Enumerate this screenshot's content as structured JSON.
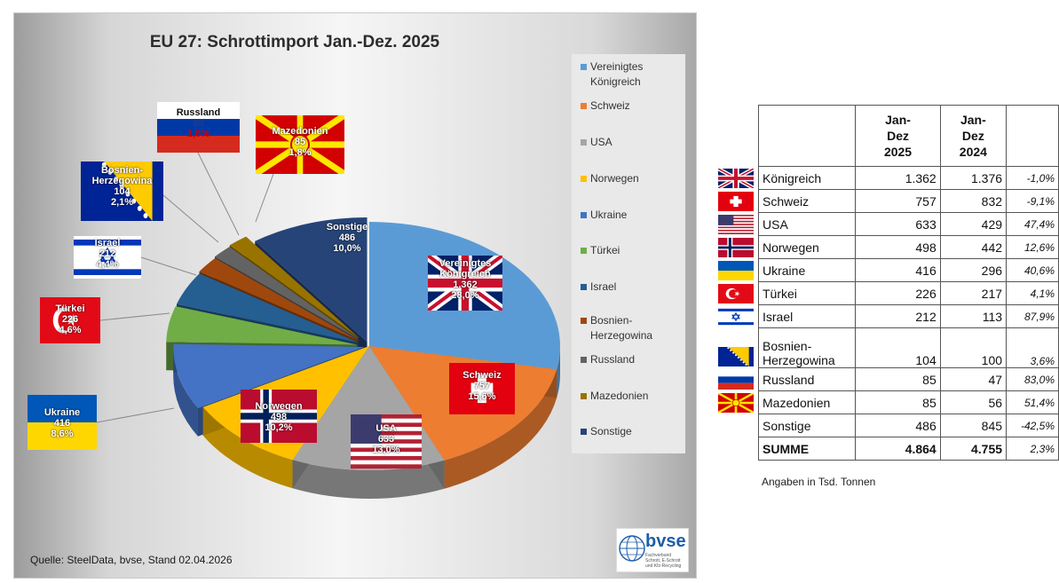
{
  "chart_data": {
    "type": "pie",
    "title": "EU 27: Schrottimport Jan.-Dez. 2025",
    "source": "Quelle: SteelData, bvse, Stand 02.04.2026",
    "slices": [
      {
        "name": "Vereinigtes Königreich",
        "value": 1362,
        "percent": "28,0%",
        "color": "#5b9bd5"
      },
      {
        "name": "Schweiz",
        "value": 757,
        "percent": "15,6%",
        "color": "#ed7d31"
      },
      {
        "name": "USA",
        "value": 633,
        "percent": "13,0%",
        "color": "#a5a5a5"
      },
      {
        "name": "Norwegen",
        "value": 498,
        "percent": "10,2%",
        "color": "#ffc000"
      },
      {
        "name": "Ukraine",
        "value": 416,
        "percent": "8,6%",
        "color": "#4472c4"
      },
      {
        "name": "Türkei",
        "value": 226,
        "percent": "4,6%",
        "color": "#70ad47"
      },
      {
        "name": "Israel",
        "value": 212,
        "percent": "4,4%",
        "color": "#255e91"
      },
      {
        "name": "Bosnien-Herzegowina",
        "value": 104,
        "percent": "2,1%",
        "color": "#9e480e"
      },
      {
        "name": "Russland",
        "value": 85,
        "percent": "1,8%",
        "color": "#636363"
      },
      {
        "name": "Mazedonien",
        "value": 85,
        "percent": "1,8%",
        "color": "#997300"
      },
      {
        "name": "Sonstige",
        "value": 486,
        "percent": "10,0%",
        "color": "#264478"
      }
    ],
    "legend_position": "right",
    "labels": {
      "uk": [
        "Vereinigtes",
        "Königreich",
        "1.362",
        "28,0%"
      ],
      "ch": [
        "Schweiz",
        "757",
        "15,6%"
      ],
      "us": [
        "USA",
        "633",
        "13,0%"
      ],
      "no": [
        "Norwegen",
        "498",
        "10,2%"
      ],
      "ua": [
        "Ukraine",
        "416",
        "8,6%"
      ],
      "tr": [
        "Türkei",
        "226",
        "4,6%"
      ],
      "il": [
        "Israel",
        "212",
        "4,4%"
      ],
      "ba": [
        "Bosnien-",
        "Herzegowina",
        "104",
        "2,1%"
      ],
      "ru": [
        "Russland",
        "85",
        "1,8%"
      ],
      "mk": [
        "Mazedonien",
        "85",
        "1,8%"
      ],
      "so": [
        "Sonstige",
        "486",
        "10,0%"
      ]
    },
    "legend": [
      [
        "Vereinigtes",
        "Königreich"
      ],
      [
        "Schweiz"
      ],
      [
        "USA"
      ],
      [
        "Norwegen"
      ],
      [
        "Ukraine"
      ],
      [
        "Türkei"
      ],
      [
        "Israel"
      ],
      [
        "Bosnien-",
        "Herzegowina"
      ],
      [
        "Russland"
      ],
      [
        "Mazedonien"
      ],
      [
        "Sonstige"
      ]
    ]
  },
  "logo": {
    "text": "bvse",
    "subtext": "Fachverband Schrott, E-Schrott und Kfz-Recycling"
  },
  "table": {
    "headers": [
      "",
      "Jan-\nDez\n2025",
      "Jan-\nDez\n2024",
      ""
    ],
    "rows": [
      {
        "name": "Königreich",
        "v2025": "1.362",
        "v2024": "1.376",
        "change": "-1,0%"
      },
      {
        "name": "Schweiz",
        "v2025": "757",
        "v2024": "832",
        "change": "-9,1%"
      },
      {
        "name": "USA",
        "v2025": "633",
        "v2024": "429",
        "change": "47,4%"
      },
      {
        "name": "Norwegen",
        "v2025": "498",
        "v2024": "442",
        "change": "12,6%"
      },
      {
        "name": "Ukraine",
        "v2025": "416",
        "v2024": "296",
        "change": "40,6%"
      },
      {
        "name": "Türkei",
        "v2025": "226",
        "v2024": "217",
        "change": "4,1%"
      },
      {
        "name": "Israel",
        "v2025": "212",
        "v2024": "113",
        "change": "87,9%"
      },
      {
        "name": "Bosnien-\nHerzegowina",
        "v2025": "104",
        "v2024": "100",
        "change": "3,6%"
      },
      {
        "name": "Russland",
        "v2025": "85",
        "v2024": "47",
        "change": "83,0%"
      },
      {
        "name": "Mazedonien",
        "v2025": "85",
        "v2024": "56",
        "change": "51,4%"
      },
      {
        "name": "Sonstige",
        "v2025": "486",
        "v2024": "845",
        "change": "-42,5%"
      }
    ],
    "sum": {
      "name": "SUMME",
      "v2025": "4.864",
      "v2024": "4.755",
      "change": "2,3%"
    },
    "unit_note": "Angaben in Tsd. Tonnen"
  }
}
